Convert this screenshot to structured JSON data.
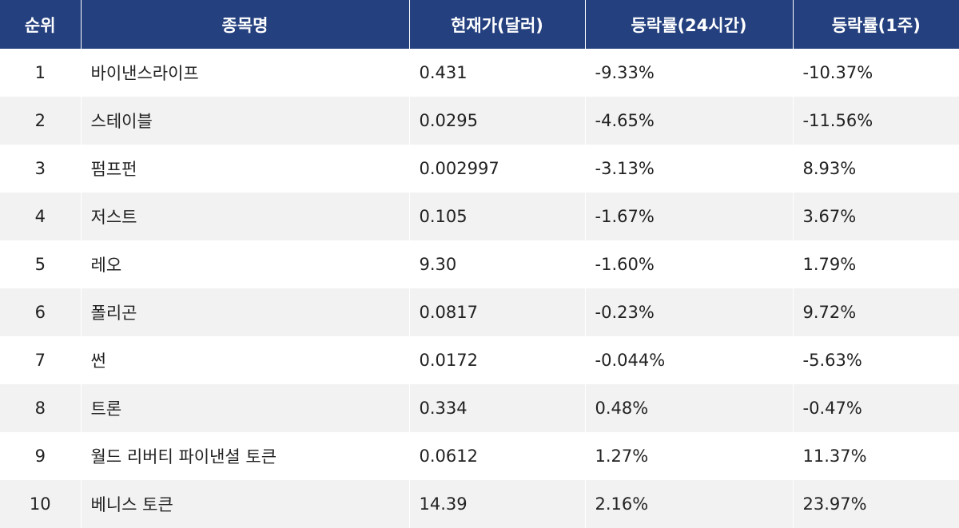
{
  "table": {
    "headers": [
      "순위",
      "종목명",
      "현재가(달러)",
      "등락률(24시간)",
      "등락률(1주)"
    ],
    "rows": [
      {
        "rank": "1",
        "name": "바이낸스라이프",
        "price": "0.431",
        "change_24h": "-9.33%",
        "change_1w": "-10.37%"
      },
      {
        "rank": "2",
        "name": "스테이블",
        "price": "0.0295",
        "change_24h": "-4.65%",
        "change_1w": "-11.56%"
      },
      {
        "rank": "3",
        "name": "펌프펀",
        "price": "0.002997",
        "change_24h": "-3.13%",
        "change_1w": "8.93%"
      },
      {
        "rank": "4",
        "name": "저스트",
        "price": "0.105",
        "change_24h": "-1.67%",
        "change_1w": "3.67%"
      },
      {
        "rank": "5",
        "name": "레오",
        "price": "9.30",
        "change_24h": "-1.60%",
        "change_1w": "1.79%"
      },
      {
        "rank": "6",
        "name": "폴리곤",
        "price": "0.0817",
        "change_24h": "-0.23%",
        "change_1w": "9.72%"
      },
      {
        "rank": "7",
        "name": "썬",
        "price": "0.0172",
        "change_24h": "-0.044%",
        "change_1w": "-5.63%"
      },
      {
        "rank": "8",
        "name": "트론",
        "price": "0.334",
        "change_24h": "0.48%",
        "change_1w": "-0.47%"
      },
      {
        "rank": "9",
        "name": "월드 리버티 파이낸셜 토큰",
        "price": "0.0612",
        "change_24h": "1.27%",
        "change_1w": "11.37%"
      },
      {
        "rank": "10",
        "name": "베니스 토큰",
        "price": "14.39",
        "change_24h": "2.16%",
        "change_1w": "23.97%"
      }
    ]
  },
  "colors": {
    "header_bg": "#24407f",
    "header_text": "#ffffff",
    "row_alt_bg": "#f2f2f2",
    "cell_text": "#222222"
  }
}
